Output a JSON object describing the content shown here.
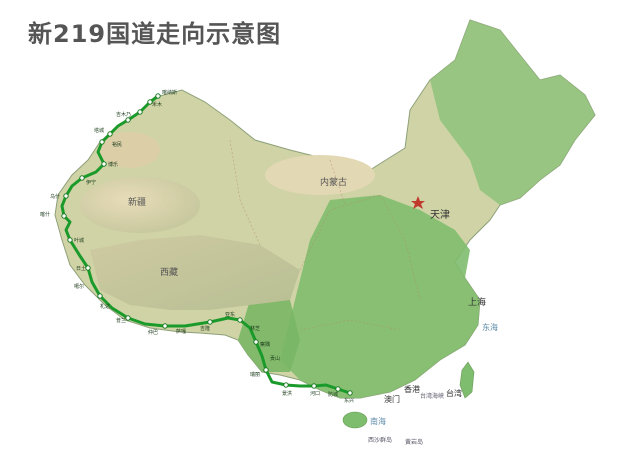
{
  "title": "新219国道走向示意图",
  "region_labels": {
    "xinjiang": "新疆",
    "xizang": "西藏",
    "neimeng": "内蒙古",
    "tianjin": "天津",
    "shanghai": "上海",
    "taiwan": "台湾",
    "xianggang": "香港",
    "aomen": "澳门",
    "haixia": "台湾海峡",
    "donghai": "东海",
    "nanhai": "南海",
    "xisha": "西沙群岛",
    "huangyan": "黄岩岛"
  },
  "route_stops": {
    "kanas": "喀纳斯",
    "hemu": "禾木",
    "jimunai": "吉木乃",
    "tacheng": "塔城",
    "yumin": "裕民",
    "bole": "博乐",
    "wenquan": "温泉",
    "yining": "伊宁",
    "zhaosu": "昭苏",
    "wushi": "乌什",
    "akqi": "阿合奇",
    "atushi": "阿图什",
    "kashi": "喀什",
    "yecheng": "叶城",
    "ritu": "日土",
    "gar": "噶尔",
    "zhada": "札达",
    "pulan": "普兰",
    "zhongba": "仲巴",
    "saga": "萨嘎",
    "jilong": "吉隆",
    "dingri": "定日",
    "lazi": "拉孜",
    "kangma": "康马",
    "yadong": "亚东",
    "luozha": "洛扎",
    "cuona": "错那",
    "longzi": "隆子",
    "lhunze": "隆子",
    "nyingchi": "林芝",
    "chayu": "察隅",
    "bomi": "波密",
    "gongshan": "贡山",
    "lushui": "泸水",
    "tengchong": "腾冲",
    "ruili": "瑞丽",
    "mangshi": "芒市",
    "lancang": "澜沧",
    "jinghong": "景洪",
    "mengla": "勐腊",
    "jiangcheng": "江城",
    "hekou": "河口",
    "malipo": "麻栗坡",
    "napo": "那坡",
    "jingxi": "靖西",
    "pingxiang": "凭祥",
    "fangcheng": "防城",
    "dongxing": "东兴"
  }
}
